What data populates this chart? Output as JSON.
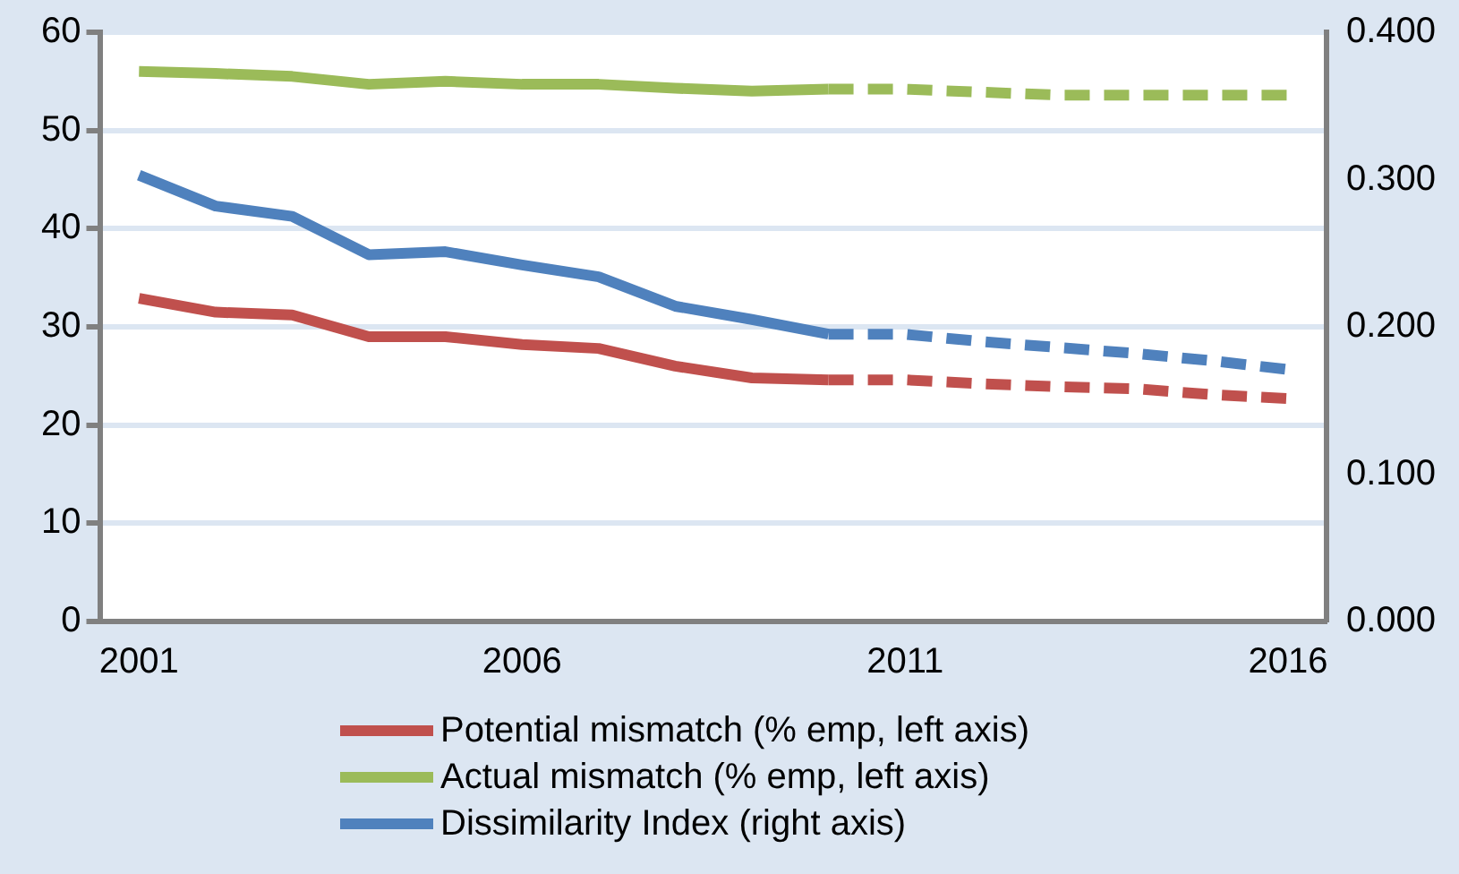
{
  "chart_data": {
    "type": "line",
    "categories": [
      "2001",
      null,
      null,
      null,
      null,
      "2006",
      null,
      null,
      null,
      null,
      "2011",
      null,
      null,
      null,
      null,
      "2016"
    ],
    "series": [
      {
        "name": "Potential mismatch (% emp, left axis)",
        "color": "#c0504d",
        "line_style": "solid",
        "values": [
          32.9,
          31.5,
          31.2,
          29.0,
          29.0,
          28.2,
          27.8,
          26.0,
          24.8,
          24.6,
          null,
          null,
          null,
          null,
          null,
          null
        ]
      },
      {
        "color": "#c0504d",
        "line_style": "dashed",
        "values": [
          null,
          null,
          null,
          null,
          null,
          null,
          null,
          null,
          null,
          24.6,
          24.6,
          24.2,
          23.9,
          23.7,
          23.1,
          22.7
        ]
      },
      {
        "name": "Actual mismatch (% emp, left axis)",
        "color": "#9bbb59",
        "line_style": "solid",
        "values": [
          56.0,
          55.8,
          55.5,
          54.7,
          55.0,
          54.7,
          54.7,
          54.3,
          54.0,
          54.2,
          null,
          null,
          null,
          null,
          null,
          null
        ]
      },
      {
        "color": "#9bbb59",
        "line_style": "dashed",
        "values": [
          null,
          null,
          null,
          null,
          null,
          null,
          null,
          null,
          null,
          54.2,
          54.2,
          53.9,
          53.6,
          53.6,
          53.6,
          53.6
        ]
      },
      {
        "name": "Dissimilarity Index (right axis)",
        "color": "#4f81bd",
        "line_style": "solid",
        "axis": "y2",
        "values": [
          0.303,
          0.282,
          0.275,
          0.249,
          0.251,
          0.242,
          0.234,
          0.214,
          0.205,
          0.195,
          null,
          null,
          null,
          null,
          null,
          null
        ]
      },
      {
        "color": "#4f81bd",
        "line_style": "dashed",
        "axis": "y2",
        "values": [
          null,
          null,
          null,
          null,
          null,
          null,
          null,
          null,
          null,
          0.195,
          0.195,
          0.19,
          0.186,
          0.182,
          0.177,
          0.171
        ]
      }
    ],
    "ylim": [
      0,
      60
    ],
    "yticks": [
      0,
      10,
      20,
      30,
      40,
      50,
      60
    ],
    "y2lim": [
      0,
      0.4
    ],
    "y2ticks": [
      {
        "value": 0,
        "label": "0.000"
      },
      {
        "value": 0.1,
        "label": "0.100"
      },
      {
        "value": 0.2,
        "label": "0.200"
      },
      {
        "value": 0.3,
        "label": "0.300"
      },
      {
        "value": 0.4,
        "label": "0.400"
      }
    ],
    "grid": "y",
    "legend": "bottom",
    "marker": "none"
  }
}
